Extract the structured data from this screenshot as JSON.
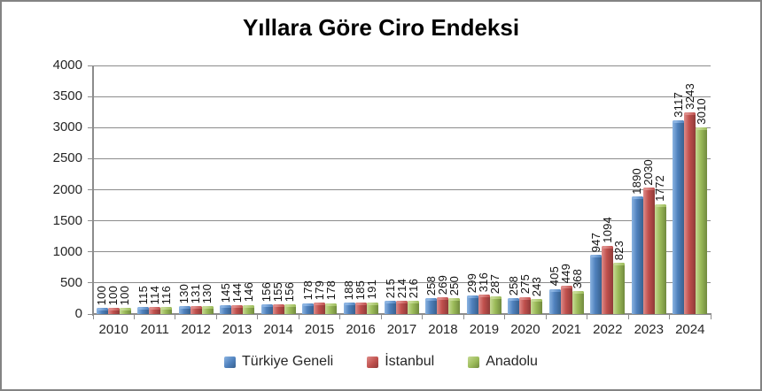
{
  "title": "Yıllara Göre Ciro Endeksi",
  "chart_data": {
    "type": "bar",
    "title": "Yıllara Göre Ciro Endeksi",
    "categories": [
      "2010",
      "2011",
      "2012",
      "2013",
      "2014",
      "2015",
      "2016",
      "2017",
      "2018",
      "2019",
      "2020",
      "2021",
      "2022",
      "2023",
      "2024"
    ],
    "series": [
      {
        "name": "Türkiye Geneli",
        "color": "#4F81BD",
        "color_light": "#8CB4E2",
        "color_dark": "#38618E",
        "values": [
          100,
          115,
          130,
          145,
          156,
          178,
          188,
          215,
          258,
          299,
          258,
          405,
          947,
          1890,
          3117
        ]
      },
      {
        "name": "İstanbul",
        "color": "#C0504D",
        "color_light": "#DE8C89",
        "color_dark": "#8F3B39",
        "values": [
          100,
          114,
          131,
          144,
          155,
          179,
          185,
          214,
          269,
          316,
          275,
          449,
          1094,
          2030,
          3243
        ]
      },
      {
        "name": "Anadolu",
        "color": "#9BBB59",
        "color_light": "#C6DA94",
        "color_dark": "#718A3E",
        "values": [
          100,
          116,
          130,
          146,
          156,
          178,
          191,
          216,
          250,
          287,
          243,
          368,
          823,
          1772,
          3010
        ]
      }
    ],
    "xlabel": "",
    "ylabel": "",
    "ylim": [
      0,
      4000
    ],
    "yticks": [
      0,
      500,
      1000,
      1500,
      2000,
      2500,
      3000,
      3500,
      4000
    ],
    "grid": true,
    "gridline_color": "#8C8C8C",
    "axis_color": "#8C8C8C",
    "data_labels_rotated": true,
    "legend_position": "bottom"
  }
}
